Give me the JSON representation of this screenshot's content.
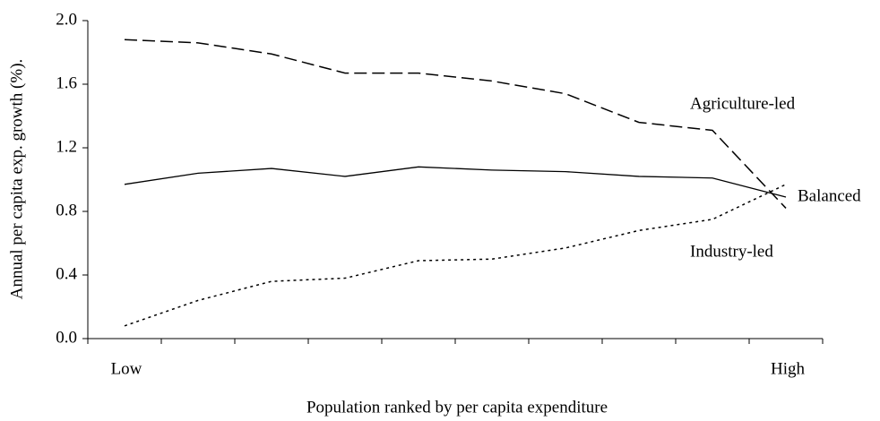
{
  "chart_data": {
    "type": "line",
    "x_label": "Population ranked by per capita expenditure",
    "y_label": "Annual per capita exp. growth (%).",
    "categories": [
      "Low",
      null,
      null,
      null,
      null,
      null,
      null,
      null,
      null,
      "High"
    ],
    "series": [
      {
        "name": "Agriculture-led",
        "color": "#000000",
        "style": "dashed",
        "values": [
          1.88,
          1.86,
          1.79,
          1.67,
          1.67,
          1.62,
          1.54,
          1.36,
          1.31,
          0.82
        ]
      },
      {
        "name": "Balanced",
        "color": "#000000",
        "style": "solid",
        "values": [
          0.97,
          1.04,
          1.07,
          1.02,
          1.08,
          1.06,
          1.05,
          1.02,
          1.01,
          0.89
        ]
      },
      {
        "name": "Industry-led",
        "color": "#000000",
        "style": "dotted",
        "values": [
          0.08,
          0.24,
          0.36,
          0.38,
          0.49,
          0.5,
          0.57,
          0.68,
          0.75,
          0.97
        ]
      }
    ],
    "ylim": [
      0,
      2
    ],
    "yticks": [
      {
        "value": 0,
        "label": "0.0"
      },
      0.4,
      0.8,
      1.2,
      1.6,
      {
        "value": 2,
        "label": "2.0"
      }
    ],
    "grid": false
  }
}
